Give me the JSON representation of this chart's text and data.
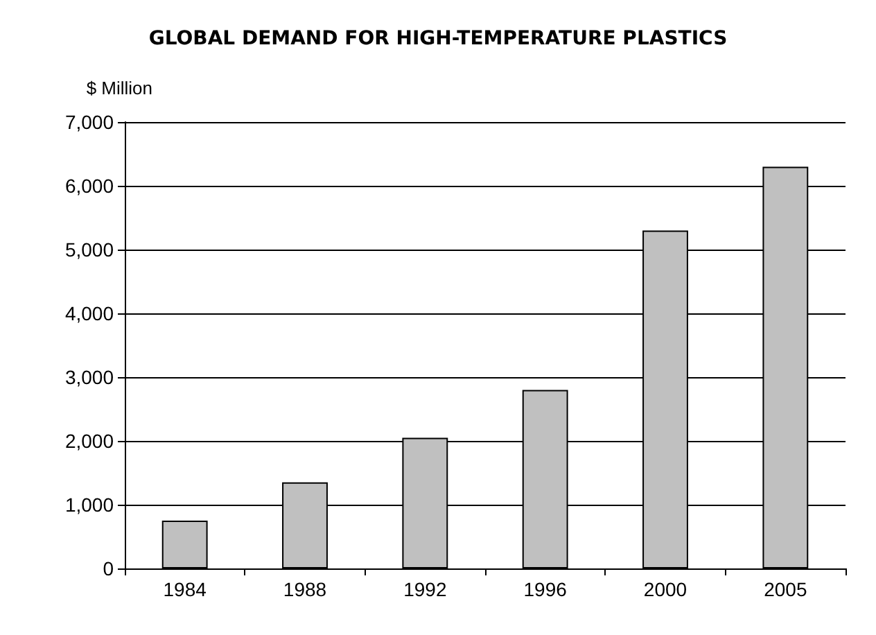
{
  "chart_data": {
    "type": "bar",
    "title": "GLOBAL DEMAND FOR HIGH-TEMPERATURE PLASTICS",
    "ylabel": "$ Million",
    "categories": [
      "1984",
      "1988",
      "1992",
      "1996",
      "2000",
      "2005"
    ],
    "values": [
      750,
      1350,
      2050,
      2800,
      5300,
      6300
    ],
    "color": "#c0c0c0",
    "ylim": [
      0,
      7000
    ],
    "yticks": [
      0,
      {
        "value": 1000,
        "label": "1,000"
      },
      {
        "value": 2000,
        "label": "2,000"
      },
      {
        "value": 3000,
        "label": "3,000"
      },
      {
        "value": 4000,
        "label": "4,000"
      },
      {
        "value": 5000,
        "label": "5,000"
      },
      {
        "value": 6000,
        "label": "6,000"
      },
      {
        "value": 7000,
        "label": "7,000"
      }
    ],
    "grid": "y"
  }
}
